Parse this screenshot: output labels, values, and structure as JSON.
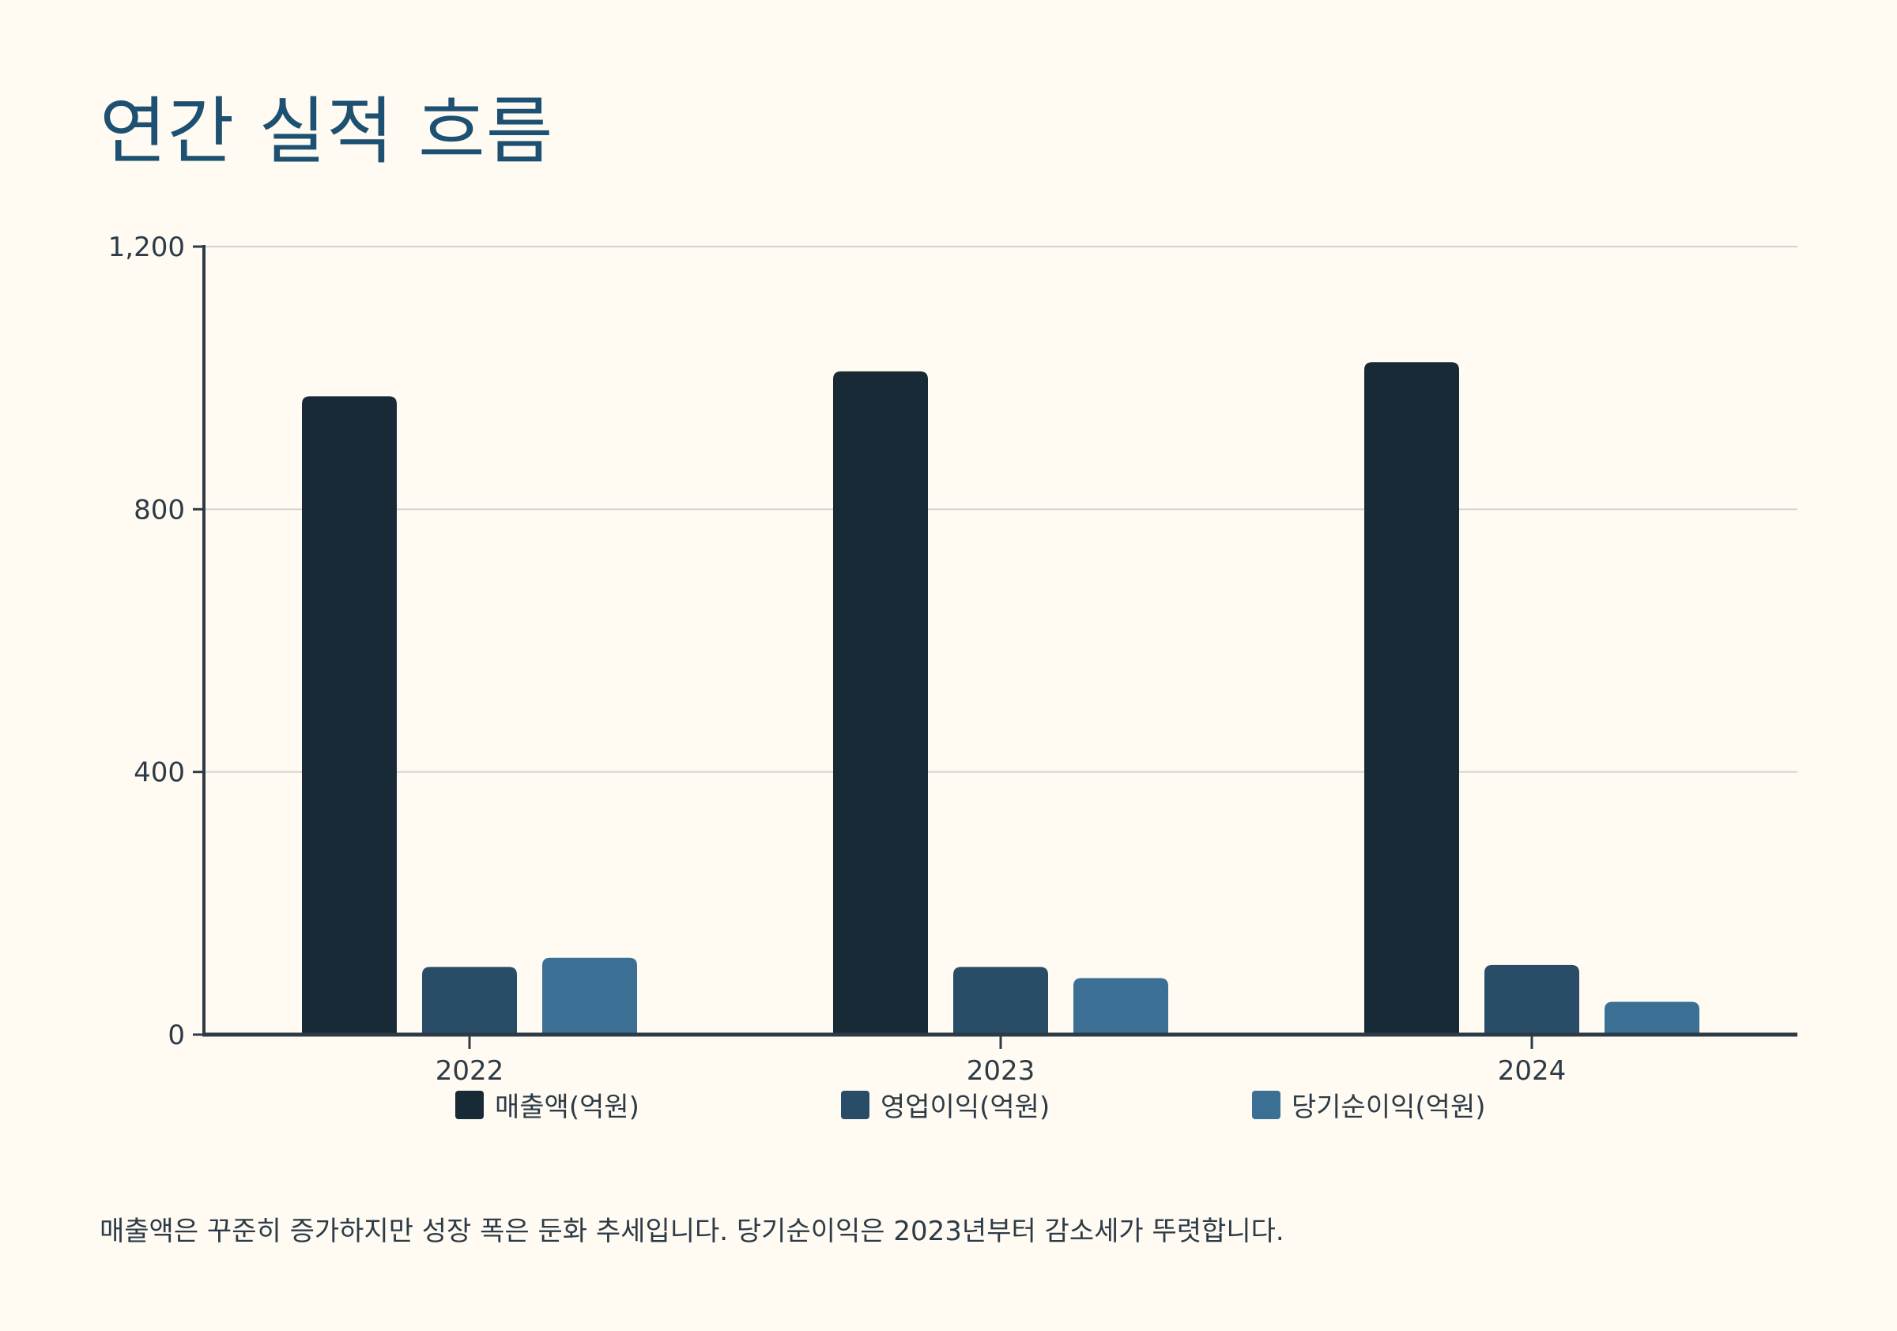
{
  "title": "연간 실적 흐름",
  "caption": "매출액은 꾸준히 증가하지만 성장 폭은 둔화 추세입니다. 당기순이익은 2023년부터 감소세가 뚜렷합니다.",
  "chart_data": {
    "type": "bar",
    "categories": [
      "2022",
      "2023",
      "2024"
    ],
    "series": [
      {
        "name": "매출액(억원)",
        "values": [
          972,
          1010,
          1024
        ],
        "color": "#172a36"
      },
      {
        "name": "영업이익(억원)",
        "values": [
          103,
          103,
          106
        ],
        "color": "#2a4d67"
      },
      {
        "name": "당기순이익(억원)",
        "values": [
          117,
          86,
          50
        ],
        "color": "#3b7094"
      }
    ],
    "yticks": [
      0,
      400,
      800,
      1200
    ],
    "ytick_labels": [
      "0",
      "400",
      "800",
      "1,200"
    ],
    "ylim": [
      0,
      1200
    ],
    "grid": true,
    "legend_position": "bottom",
    "xlabel": "",
    "ylabel": ""
  }
}
